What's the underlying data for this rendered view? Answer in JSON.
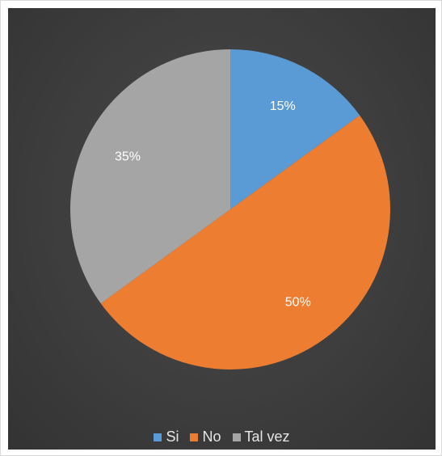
{
  "chart_data": {
    "type": "pie",
    "title": "",
    "categories": [
      "Si",
      "No",
      "Tal vez"
    ],
    "values": [
      15,
      50,
      35
    ],
    "data_labels": [
      "15%",
      "50%",
      "35%"
    ],
    "colors": [
      "#5b9bd5",
      "#ed7d31",
      "#a5a5a5"
    ],
    "legend_position": "bottom",
    "start_angle": "12 o'clock, clockwise"
  },
  "legend": {
    "items": [
      {
        "label": "Si",
        "color": "#5b9bd5"
      },
      {
        "label": "No",
        "color": "#ed7d31"
      },
      {
        "label": "Tal vez",
        "color": "#a5a5a5"
      }
    ]
  }
}
